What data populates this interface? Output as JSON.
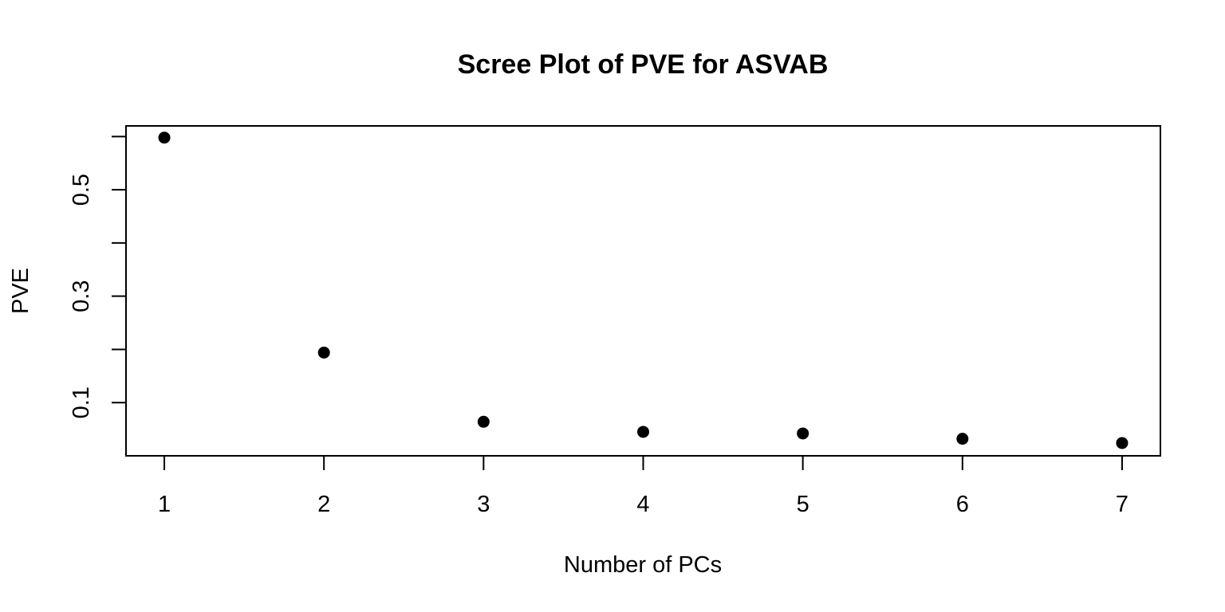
{
  "chart_data": {
    "type": "scatter",
    "title": "Scree Plot of PVE for ASVAB",
    "xlabel": "Number of PCs",
    "ylabel": "PVE",
    "xlim": [
      0.76,
      7.24
    ],
    "ylim": [
      0.0,
      0.62
    ],
    "x_ticks": [
      1,
      2,
      3,
      4,
      5,
      6,
      7
    ],
    "x_tick_labels": [
      "1",
      "2",
      "3",
      "4",
      "5",
      "6",
      "7"
    ],
    "y_ticks": [
      0.1,
      0.2,
      0.3,
      0.4,
      0.5,
      0.6
    ],
    "y_tick_labels": [
      "0.1",
      "",
      "0.3",
      "",
      "0.5",
      ""
    ],
    "grid": false,
    "legend": "none",
    "point_color": "#000000",
    "x": [
      1,
      2,
      3,
      4,
      5,
      6,
      7
    ],
    "y": [
      0.598,
      0.194,
      0.064,
      0.045,
      0.042,
      0.032,
      0.024
    ]
  }
}
